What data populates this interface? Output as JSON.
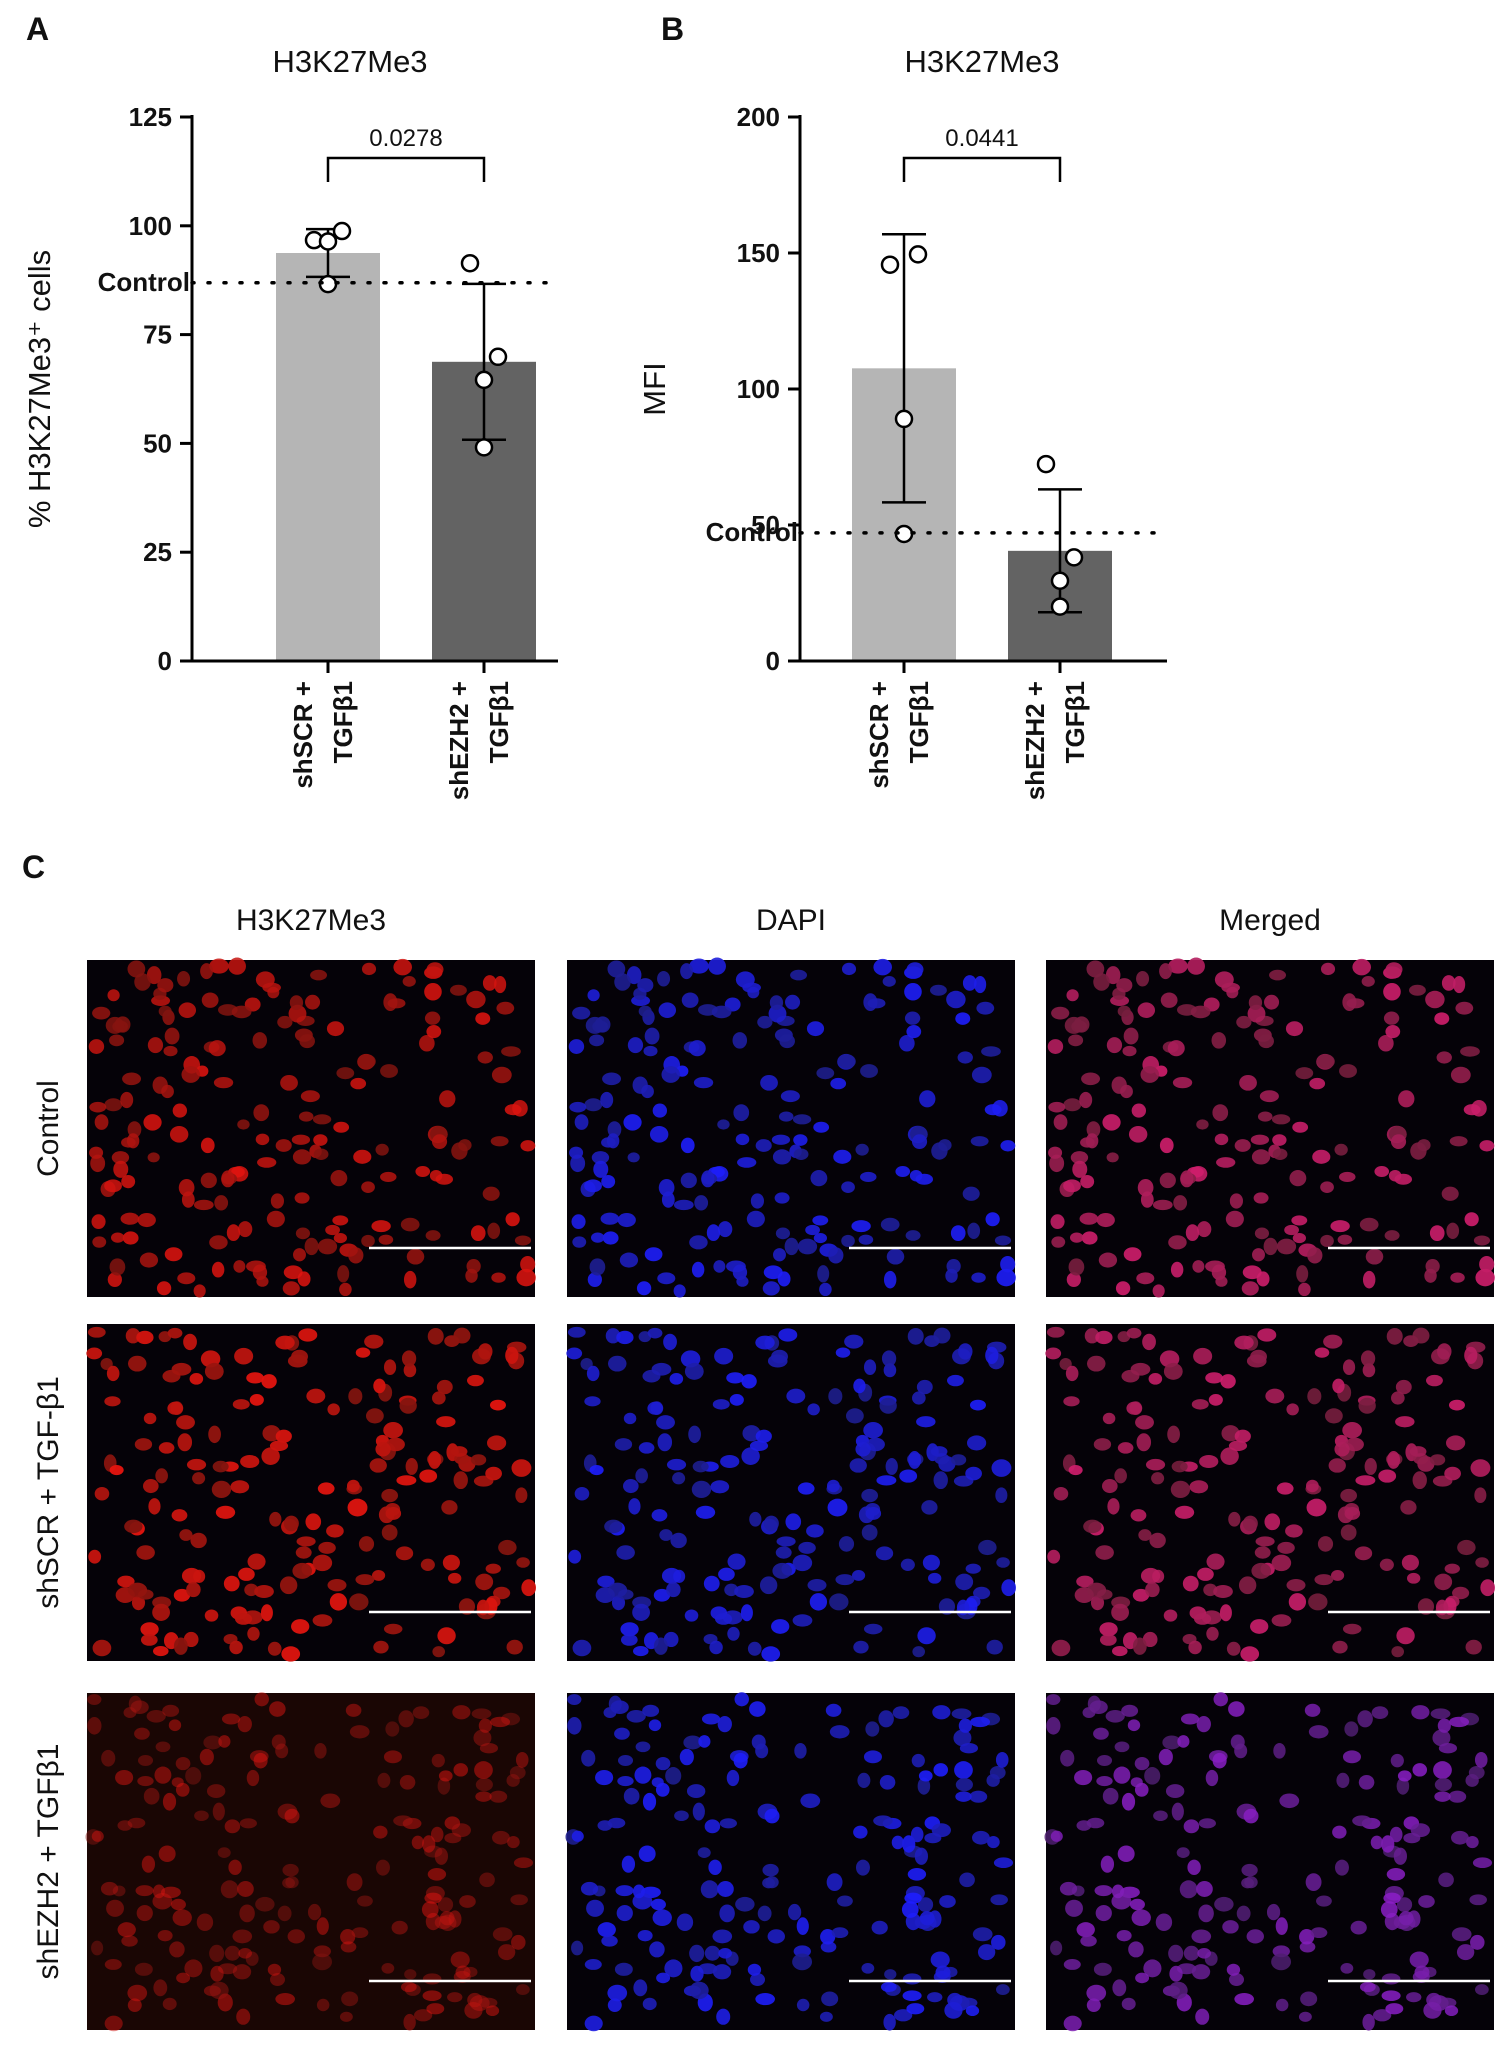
{
  "chart_data": [
    {
      "type": "bar",
      "panel": "A",
      "title": "H3K27Me3",
      "y_label": "% H3K27Me3⁺ cells",
      "categories": [
        [
          "shSCR +",
          "TGFβ1"
        ],
        [
          "shEZH2 +",
          "TGFβ1"
        ]
      ],
      "values": [
        93.75,
        68.75
      ],
      "errors": [
        5.5,
        17.9
      ],
      "colors": [
        "#b5b5b5",
        "#636363"
      ],
      "points": [
        [
          96.7,
          98.8,
          96.4,
          86.6
        ],
        [
          91.4,
          69.9,
          64.6,
          49.1
        ]
      ],
      "reference_line": {
        "label": "Control",
        "value": 86.9
      },
      "annotation": "0.0278",
      "ylim": [
        0,
        125
      ],
      "yticks": [
        0,
        25,
        50,
        75,
        100,
        125
      ]
    },
    {
      "type": "bar",
      "panel": "B",
      "title": "H3K27Me3",
      "y_label": "MFI",
      "categories": [
        [
          "shSCR +",
          "TGFβ1"
        ],
        [
          "shEZH2 +",
          "TGFβ1"
        ]
      ],
      "values": [
        107.6,
        40.5
      ],
      "errors": [
        49.3,
        22.6
      ],
      "colors": [
        "#b5b5b5",
        "#636363"
      ],
      "points": [
        [
          145.7,
          149.5,
          89,
          46.7
        ],
        [
          72.4,
          38.1,
          29.5,
          20
        ]
      ],
      "reference_line": {
        "label": "Control",
        "value": 47.1
      },
      "annotation": "0.0441",
      "ylim": [
        0,
        200
      ],
      "yticks": [
        0,
        50,
        100,
        150,
        200
      ]
    }
  ],
  "panel_c": {
    "letter": "C",
    "columns": [
      "H3K27Me3",
      "DAPI",
      "Merged"
    ],
    "rows": [
      "Control",
      "shSCR + TGF-β1",
      "shEZH2 + TGFβ1"
    ]
  }
}
